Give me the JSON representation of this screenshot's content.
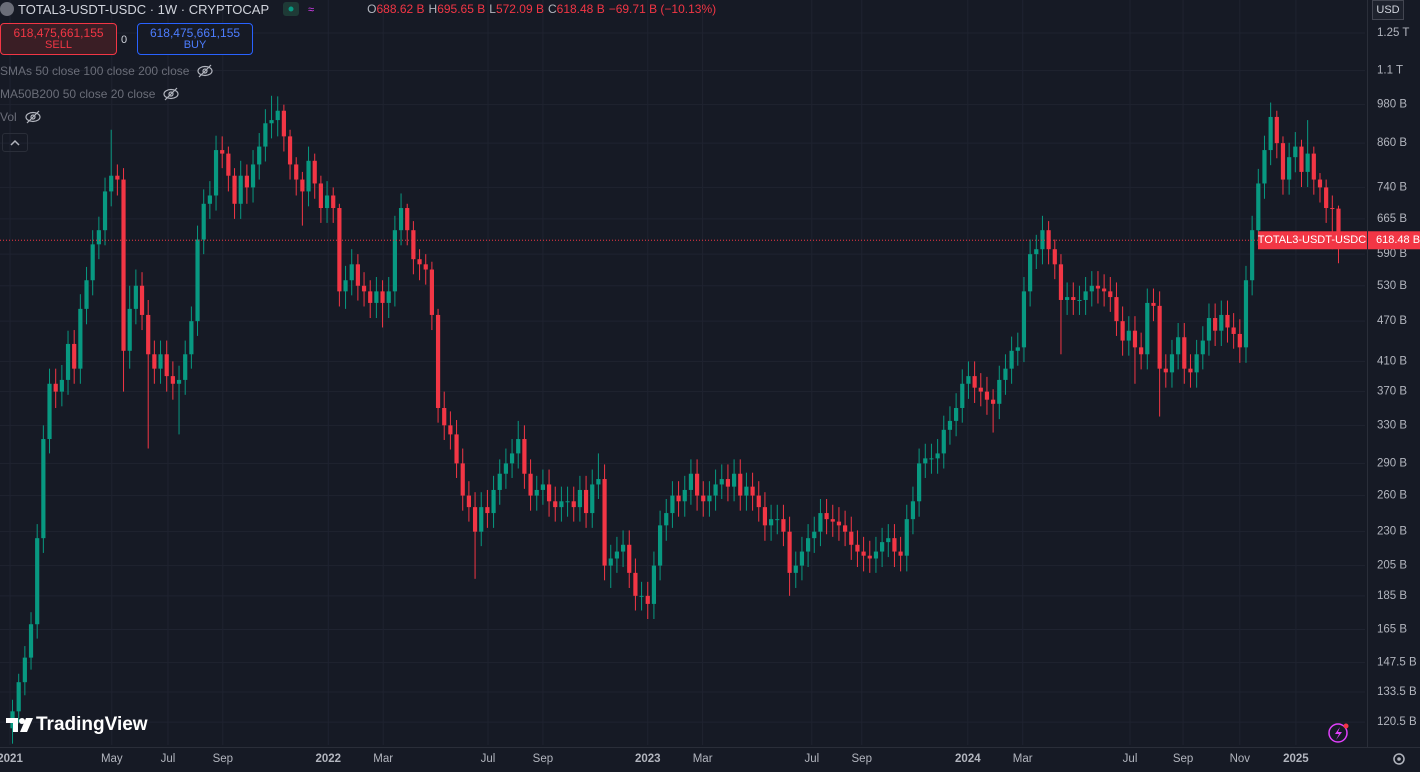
{
  "header": {
    "symbol": "TOTAL3-USDT-USDC · 1W · CRYPTOCAP",
    "ohlc": [
      {
        "key": "O",
        "value": "688.62 B"
      },
      {
        "key": "H",
        "value": "695.65 B"
      },
      {
        "key": "L",
        "value": "572.09 B"
      },
      {
        "key": "C",
        "value": "618.48 B"
      }
    ],
    "change": "−69.71 B (−10.13%)"
  },
  "trade": {
    "sell_price": "618,475,661,155",
    "sell": "SELL",
    "spread": "0",
    "buy_price": "618,475,661,155",
    "buy": "BUY"
  },
  "indicators": [
    "SMAs 50 close 100 close 200 close",
    "MA50B200 50 close 20 close",
    "Vol"
  ],
  "currency": "USD",
  "branding": "TradingView",
  "chart_data": {
    "type": "candlestick",
    "log_scale": true,
    "grid": true,
    "up_color": "#089981",
    "down_color": "#f23645",
    "xlim": [
      -2.03,
      219.3
    ],
    "ylim": [
      111.5,
      1398
    ],
    "xticks": [
      {
        "value": -0.4,
        "label": "2021"
      },
      {
        "value": 16.1,
        "label": "May"
      },
      {
        "value": 25.2,
        "label": "Jul"
      },
      {
        "value": 34.1,
        "label": "Sep"
      },
      {
        "value": 51.2,
        "label": "2022"
      },
      {
        "value": 60.1,
        "label": "Mar"
      },
      {
        "value": 77.1,
        "label": "Jul"
      },
      {
        "value": 86.0,
        "label": "Sep"
      },
      {
        "value": 103.0,
        "label": "2023"
      },
      {
        "value": 111.9,
        "label": "Mar"
      },
      {
        "value": 129.6,
        "label": "Jul"
      },
      {
        "value": 137.7,
        "label": "Sep"
      },
      {
        "value": 154.9,
        "label": "2024"
      },
      {
        "value": 163.8,
        "label": "Mar"
      },
      {
        "value": 181.2,
        "label": "Jul"
      },
      {
        "value": 189.8,
        "label": "Sep"
      },
      {
        "value": 199.0,
        "label": "Nov"
      },
      {
        "value": 208.1,
        "label": "2025"
      }
    ],
    "yticks": [
      {
        "value": 1250,
        "label": "1.25 T"
      },
      {
        "value": 1100,
        "label": "1.1 T"
      },
      {
        "value": 980,
        "label": "980 B"
      },
      {
        "value": 860,
        "label": "860 B"
      },
      {
        "value": 740,
        "label": "740 B"
      },
      {
        "value": 665,
        "label": "665 B"
      },
      {
        "value": 590,
        "label": "590 B"
      },
      {
        "value": 530,
        "label": "530 B"
      },
      {
        "value": 470,
        "label": "470 B"
      },
      {
        "value": 410,
        "label": "410 B"
      },
      {
        "value": 370,
        "label": "370 B"
      },
      {
        "value": 330,
        "label": "330 B"
      },
      {
        "value": 290,
        "label": "290 B"
      },
      {
        "value": 260,
        "label": "260 B"
      },
      {
        "value": 230,
        "label": "230 B"
      },
      {
        "value": 205,
        "label": "205 B"
      },
      {
        "value": 185,
        "label": "185 B"
      },
      {
        "value": 165,
        "label": "165 B"
      },
      {
        "value": 147.5,
        "label": "147.5 B"
      },
      {
        "value": 133.5,
        "label": "133.5 B"
      },
      {
        "value": 120.5,
        "label": "120.5 B"
      }
    ],
    "price_tag": {
      "name": "TOTAL3-USDT-USDC",
      "value": 618.48,
      "label": "618.48 B"
    },
    "ohlc": [
      [
        118,
        130,
        112,
        125
      ],
      [
        125,
        142,
        120,
        138
      ],
      [
        138,
        156,
        132,
        150
      ],
      [
        150,
        175,
        144,
        168
      ],
      [
        168,
        236,
        160,
        225
      ],
      [
        225,
        330,
        214,
        315
      ],
      [
        315,
        400,
        300,
        380
      ],
      [
        380,
        400,
        350,
        370
      ],
      [
        370,
        405,
        352,
        385
      ],
      [
        385,
        455,
        366,
        435
      ],
      [
        435,
        456,
        380,
        400
      ],
      [
        400,
        515,
        380,
        490
      ],
      [
        490,
        565,
        465,
        540
      ],
      [
        540,
        640,
        513,
        610
      ],
      [
        610,
        670,
        580,
        640
      ],
      [
        640,
        765,
        608,
        730
      ],
      [
        730,
        900,
        694,
        770
      ],
      [
        770,
        800,
        720,
        760
      ],
      [
        760,
        790,
        370,
        425
      ],
      [
        425,
        530,
        400,
        490
      ],
      [
        490,
        560,
        465,
        530
      ],
      [
        530,
        555,
        456,
        480
      ],
      [
        480,
        505,
        305,
        420
      ],
      [
        420,
        440,
        380,
        400
      ],
      [
        400,
        440,
        380,
        420
      ],
      [
        420,
        440,
        370,
        390
      ],
      [
        390,
        410,
        360,
        380
      ],
      [
        380,
        404,
        320,
        385
      ],
      [
        385,
        440,
        366,
        420
      ],
      [
        420,
        494,
        400,
        470
      ],
      [
        470,
        650,
        447,
        620
      ],
      [
        620,
        735,
        590,
        700
      ],
      [
        700,
        756,
        665,
        720
      ],
      [
        720,
        882,
        684,
        840
      ],
      [
        840,
        880,
        790,
        830
      ],
      [
        830,
        850,
        730,
        770
      ],
      [
        770,
        790,
        665,
        700
      ],
      [
        700,
        810,
        665,
        770
      ],
      [
        770,
        800,
        700,
        740
      ],
      [
        740,
        840,
        703,
        800
      ],
      [
        800,
        890,
        760,
        850
      ],
      [
        850,
        965,
        808,
        920
      ],
      [
        920,
        1010,
        874,
        930
      ],
      [
        930,
        1008,
        880,
        960
      ],
      [
        960,
        980,
        836,
        880
      ],
      [
        880,
        900,
        760,
        800
      ],
      [
        800,
        820,
        720,
        760
      ],
      [
        760,
        780,
        650,
        730
      ],
      [
        730,
        850,
        694,
        810
      ],
      [
        810,
        830,
        712,
        750
      ],
      [
        750,
        770,
        656,
        690
      ],
      [
        690,
        756,
        656,
        720
      ],
      [
        720,
        740,
        656,
        690
      ],
      [
        690,
        700,
        494,
        520
      ],
      [
        520,
        567,
        490,
        540
      ],
      [
        540,
        600,
        513,
        570
      ],
      [
        570,
        590,
        504,
        530
      ],
      [
        530,
        555,
        494,
        520
      ],
      [
        520,
        540,
        475,
        500
      ],
      [
        500,
        546,
        475,
        520
      ],
      [
        520,
        540,
        460,
        500
      ],
      [
        500,
        546,
        475,
        520
      ],
      [
        520,
        672,
        494,
        640
      ],
      [
        640,
        725,
        608,
        690
      ],
      [
        690,
        700,
        608,
        640
      ],
      [
        640,
        660,
        551,
        580
      ],
      [
        580,
        600,
        540,
        570
      ],
      [
        570,
        590,
        532,
        560
      ],
      [
        560,
        575,
        456,
        480
      ],
      [
        480,
        490,
        333,
        350
      ],
      [
        350,
        370,
        314,
        330
      ],
      [
        330,
        346,
        304,
        320
      ],
      [
        320,
        336,
        276,
        290
      ],
      [
        290,
        305,
        247,
        260
      ],
      [
        260,
        273,
        238,
        250
      ],
      [
        250,
        263,
        196,
        230
      ],
      [
        230,
        263,
        219,
        250
      ],
      [
        250,
        265,
        233,
        245
      ],
      [
        245,
        278,
        233,
        265
      ],
      [
        265,
        294,
        252,
        280
      ],
      [
        280,
        305,
        266,
        290
      ],
      [
        290,
        315,
        276,
        300
      ],
      [
        300,
        335,
        285,
        315
      ],
      [
        315,
        330,
        266,
        280
      ],
      [
        280,
        294,
        247,
        260
      ],
      [
        260,
        278,
        247,
        265
      ],
      [
        265,
        284,
        252,
        270
      ],
      [
        270,
        284,
        242,
        255
      ],
      [
        255,
        268,
        238,
        250
      ],
      [
        250,
        268,
        238,
        255
      ],
      [
        255,
        268,
        242,
        255
      ],
      [
        255,
        268,
        238,
        250
      ],
      [
        250,
        278,
        238,
        265
      ],
      [
        265,
        278,
        233,
        245
      ],
      [
        245,
        284,
        233,
        270
      ],
      [
        270,
        300,
        257,
        275
      ],
      [
        275,
        289,
        195,
        205
      ],
      [
        205,
        220,
        190,
        210
      ],
      [
        210,
        226,
        200,
        215
      ],
      [
        215,
        231,
        204,
        220
      ],
      [
        220,
        231,
        190,
        200
      ],
      [
        200,
        210,
        176,
        185
      ],
      [
        185,
        194,
        176,
        185
      ],
      [
        185,
        194,
        171,
        180
      ],
      [
        180,
        215,
        171,
        205
      ],
      [
        205,
        247,
        195,
        235
      ],
      [
        235,
        257,
        223,
        245
      ],
      [
        245,
        273,
        233,
        260
      ],
      [
        260,
        273,
        242,
        255
      ],
      [
        255,
        278,
        242,
        265
      ],
      [
        265,
        294,
        252,
        280
      ],
      [
        280,
        294,
        247,
        260
      ],
      [
        260,
        273,
        242,
        255
      ],
      [
        255,
        273,
        242,
        260
      ],
      [
        260,
        284,
        247,
        270
      ],
      [
        270,
        289,
        257,
        275
      ],
      [
        275,
        289,
        255,
        268
      ],
      [
        268,
        294,
        255,
        280
      ],
      [
        280,
        294,
        247,
        260
      ],
      [
        260,
        281,
        247,
        268
      ],
      [
        268,
        281,
        247,
        260
      ],
      [
        260,
        273,
        238,
        250
      ],
      [
        250,
        263,
        223,
        235
      ],
      [
        235,
        252,
        223,
        240
      ],
      [
        240,
        252,
        228,
        240
      ],
      [
        240,
        252,
        219,
        230
      ],
      [
        230,
        242,
        185,
        200
      ],
      [
        200,
        215,
        190,
        205
      ],
      [
        205,
        226,
        195,
        215
      ],
      [
        215,
        236,
        204,
        225
      ],
      [
        225,
        242,
        214,
        230
      ],
      [
        230,
        257,
        219,
        245
      ],
      [
        245,
        257,
        228,
        240
      ],
      [
        240,
        252,
        226,
        238
      ],
      [
        238,
        250,
        223,
        235
      ],
      [
        235,
        247,
        219,
        230
      ],
      [
        230,
        242,
        209,
        220
      ],
      [
        220,
        231,
        204,
        215
      ],
      [
        215,
        226,
        201,
        212
      ],
      [
        212,
        223,
        200,
        210
      ],
      [
        210,
        226,
        200,
        215
      ],
      [
        215,
        233,
        204,
        222
      ],
      [
        222,
        236,
        211,
        225
      ],
      [
        225,
        236,
        204,
        215
      ],
      [
        215,
        226,
        201,
        212
      ],
      [
        212,
        252,
        201,
        240
      ],
      [
        240,
        268,
        228,
        255
      ],
      [
        255,
        305,
        242,
        290
      ],
      [
        290,
        310,
        276,
        295
      ],
      [
        295,
        310,
        280,
        295
      ],
      [
        295,
        315,
        280,
        300
      ],
      [
        300,
        341,
        285,
        325
      ],
      [
        325,
        352,
        309,
        335
      ],
      [
        335,
        368,
        318,
        350
      ],
      [
        350,
        399,
        333,
        380
      ],
      [
        380,
        410,
        361,
        390
      ],
      [
        390,
        410,
        356,
        375
      ],
      [
        375,
        394,
        352,
        370
      ],
      [
        370,
        389,
        342,
        360
      ],
      [
        360,
        373,
        322,
        355
      ],
      [
        355,
        404,
        337,
        385
      ],
      [
        385,
        420,
        366,
        400
      ],
      [
        400,
        446,
        380,
        425
      ],
      [
        425,
        452,
        404,
        430
      ],
      [
        430,
        546,
        409,
        520
      ],
      [
        520,
        620,
        494,
        590
      ],
      [
        590,
        630,
        561,
        600
      ],
      [
        600,
        672,
        570,
        640
      ],
      [
        640,
        660,
        570,
        600
      ],
      [
        600,
        620,
        542,
        570
      ],
      [
        570,
        590,
        420,
        505
      ],
      [
        505,
        536,
        480,
        510
      ],
      [
        510,
        536,
        480,
        505
      ],
      [
        505,
        530,
        480,
        505
      ],
      [
        505,
        546,
        480,
        520
      ],
      [
        520,
        557,
        494,
        530
      ],
      [
        530,
        557,
        499,
        525
      ],
      [
        525,
        551,
        494,
        520
      ],
      [
        520,
        546,
        485,
        510
      ],
      [
        510,
        536,
        447,
        470
      ],
      [
        470,
        494,
        418,
        440
      ],
      [
        440,
        478,
        418,
        455
      ],
      [
        455,
        478,
        380,
        430
      ],
      [
        430,
        452,
        399,
        420
      ],
      [
        420,
        525,
        399,
        500
      ],
      [
        500,
        525,
        470,
        495
      ],
      [
        495,
        520,
        340,
        400
      ],
      [
        400,
        420,
        375,
        395
      ],
      [
        395,
        441,
        375,
        420
      ],
      [
        420,
        467,
        399,
        445
      ],
      [
        445,
        467,
        380,
        400
      ],
      [
        400,
        420,
        375,
        395
      ],
      [
        395,
        441,
        375,
        420
      ],
      [
        420,
        462,
        399,
        440
      ],
      [
        440,
        499,
        418,
        475
      ],
      [
        475,
        499,
        432,
        455
      ],
      [
        455,
        504,
        432,
        480
      ],
      [
        480,
        504,
        437,
        460
      ],
      [
        460,
        483,
        428,
        450
      ],
      [
        450,
        473,
        408,
        430
      ],
      [
        430,
        567,
        408,
        540
      ],
      [
        540,
        672,
        513,
        640
      ],
      [
        640,
        788,
        608,
        750
      ],
      [
        750,
        882,
        712,
        840
      ],
      [
        840,
        987,
        798,
        940
      ],
      [
        940,
        960,
        817,
        860
      ],
      [
        860,
        880,
        722,
        760
      ],
      [
        760,
        861,
        722,
        820
      ],
      [
        820,
        893,
        779,
        850
      ],
      [
        850,
        870,
        741,
        780
      ],
      [
        780,
        930,
        741,
        830
      ],
      [
        830,
        850,
        722,
        760
      ],
      [
        760,
        777,
        703,
        740
      ],
      [
        740,
        760,
        656,
        690
      ],
      [
        690,
        720,
        600,
        688.19
      ],
      [
        688.62,
        695.65,
        572.09,
        618.48
      ]
    ]
  }
}
